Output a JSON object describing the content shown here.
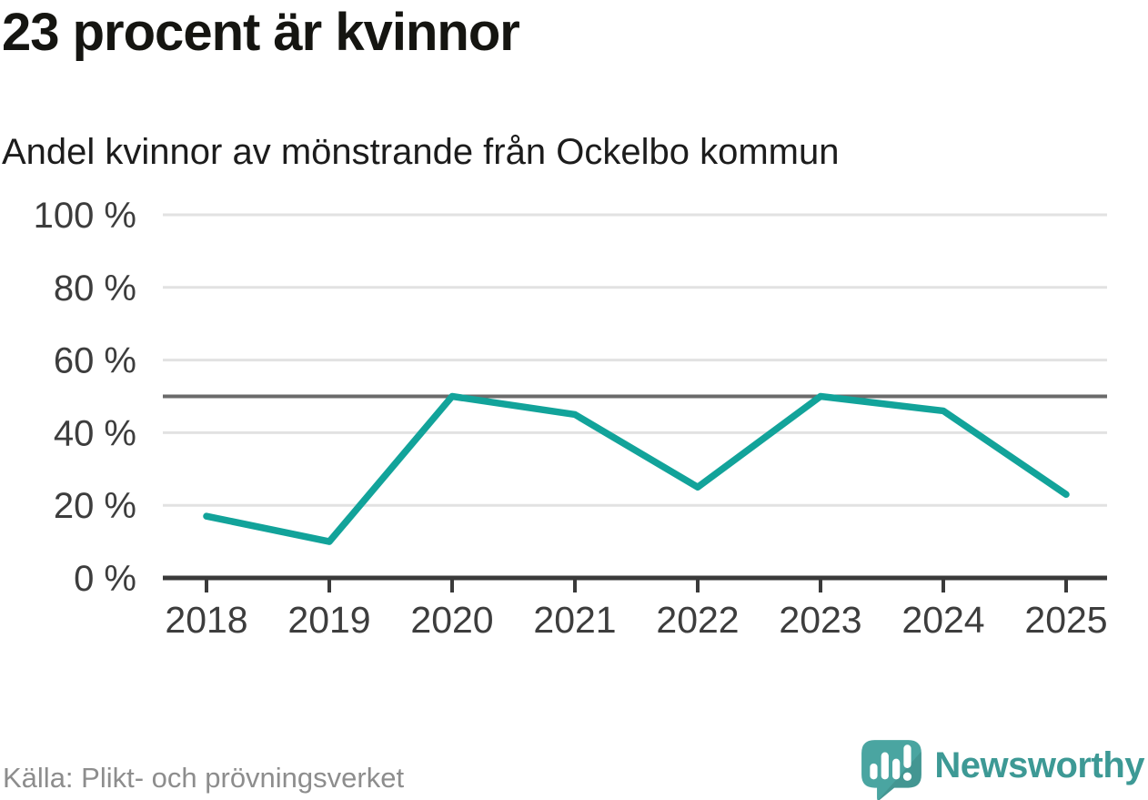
{
  "header": {
    "title": "23 procent är kvinnor",
    "subtitle": "Andel kvinnor av mönstrande från Ockelbo kommun"
  },
  "chart_data": {
    "type": "line",
    "x": [
      2018,
      2019,
      2020,
      2021,
      2022,
      2023,
      2024,
      2025
    ],
    "xtick_labels": [
      "2018",
      "2019",
      "2020",
      "2021",
      "2022",
      "2023",
      "2024",
      "2025"
    ],
    "series": [
      {
        "name": "Andel kvinnor av mönstrande",
        "values": [
          17,
          10,
          50,
          45,
          25,
          50,
          46,
          23
        ]
      }
    ],
    "title": "23 procent är kvinnor",
    "subtitle": "Andel kvinnor av mönstrande från Ockelbo kommun",
    "xlabel": "",
    "ylabel": "",
    "ylim": [
      0,
      100
    ],
    "yticks": [
      0,
      20,
      40,
      60,
      80,
      100
    ],
    "ytick_suffix": " %",
    "reference_line": 50,
    "grid": true,
    "legend": false
  },
  "footer": {
    "source": "Källa: Plikt- och prövningsverket",
    "brand": "Newsworthy"
  },
  "colors": {
    "line": "#12a39a",
    "reference_line": "#6a6a6a",
    "gridline": "#e2e2e2",
    "axis": "#3a3a3a",
    "tick_label": "#3d3d3d",
    "title_text": "#151511",
    "subtitle_text": "#1c1c1c",
    "source_text": "#8d8d8d",
    "brand_bubble": "#4aa5a1",
    "brand_text": "#3d9995",
    "background": "#ffffff"
  }
}
